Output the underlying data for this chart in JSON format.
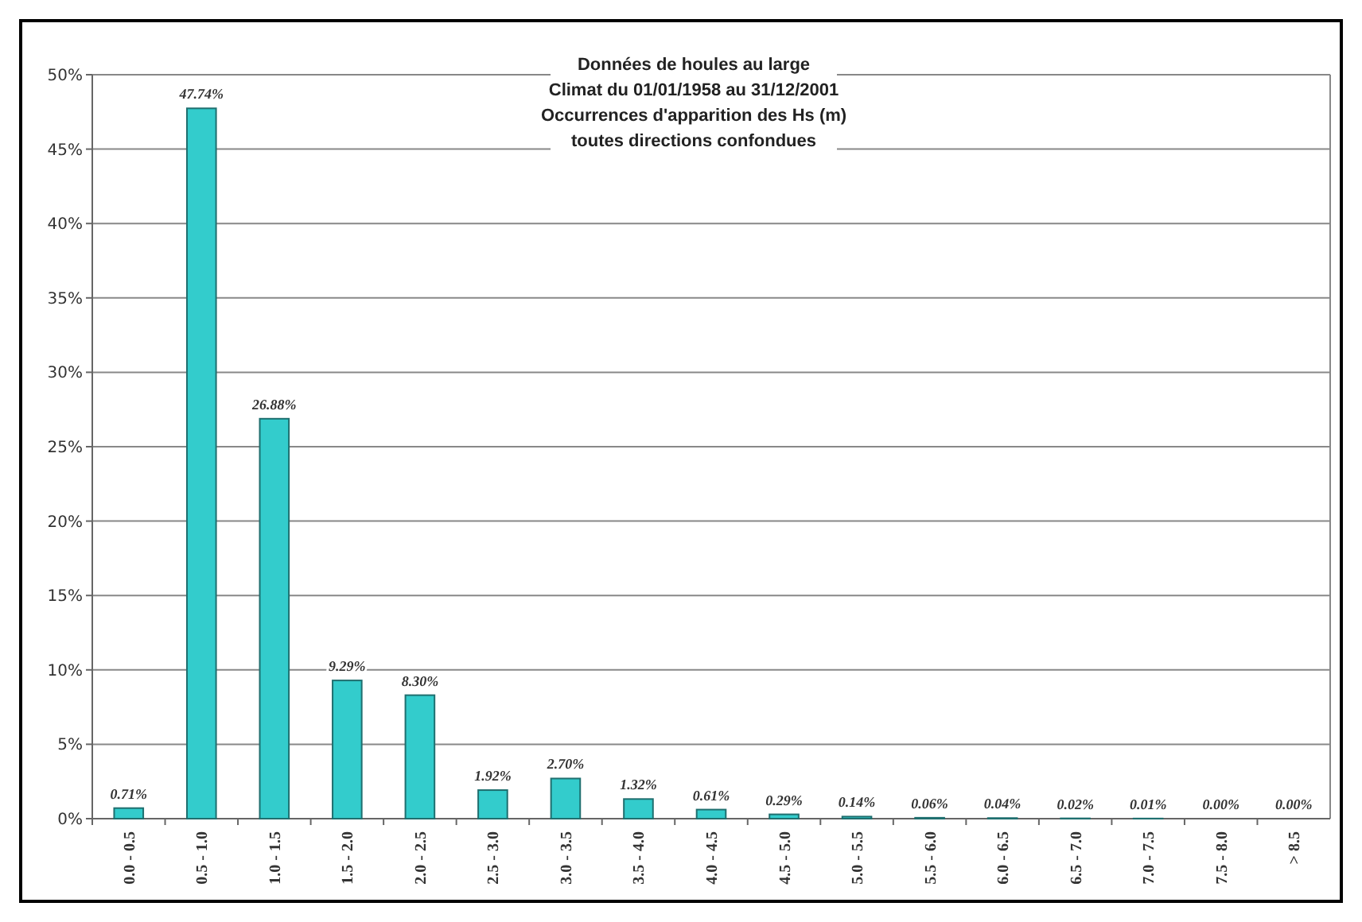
{
  "chart_data": {
    "type": "bar",
    "title": "Données de houles au large",
    "subtitle": "Climat du 01/01/1958 au 31/12/2001\nOccurrences d'apparition des Hs (m)\ntoutes directions confondues",
    "categories": [
      "0.0 - 0.5",
      "0.5 - 1.0",
      "1.0 - 1.5",
      "1.5 - 2.0",
      "2.0 - 2.5",
      "2.5 - 3.0",
      "3.0 - 3.5",
      "3.5 - 4.0",
      "4.0 - 4.5",
      "4.5 - 5.0",
      "5.0 - 5.5",
      "5.5 - 6.0",
      "6.0 - 6.5",
      "6.5 - 7.0",
      "7.0 - 7.5",
      "7.5 - 8.0",
      "> 8.5"
    ],
    "values": [
      0.71,
      47.74,
      26.88,
      9.29,
      8.3,
      1.92,
      2.7,
      1.32,
      0.61,
      0.29,
      0.14,
      0.06,
      0.04,
      0.02,
      0.01,
      0.0,
      0.0
    ],
    "value_labels": [
      "0.71%",
      "47.74%",
      "26.88%",
      "9.29%",
      "8.30%",
      "1.92%",
      "2.70%",
      "1.32%",
      "0.61%",
      "0.29%",
      "0.14%",
      "0.06%",
      "0.04%",
      "0.02%",
      "0.01%",
      "0.00%",
      "0.00%"
    ],
    "color": "#33cccc",
    "ylim": [
      0,
      50
    ],
    "yticks": [
      {
        "value": 0,
        "label": "0%"
      },
      {
        "value": 5,
        "label": "5%"
      },
      {
        "value": 10,
        "label": "10%"
      },
      {
        "value": 15,
        "label": "15%"
      },
      {
        "value": 20,
        "label": "20%"
      },
      {
        "value": 25,
        "label": "25%"
      },
      {
        "value": 30,
        "label": "30%"
      },
      {
        "value": 35,
        "label": "35%"
      },
      {
        "value": 40,
        "label": "40%"
      },
      {
        "value": 45,
        "label": "45%"
      },
      {
        "value": 50,
        "label": "50%"
      }
    ],
    "grid": "y"
  }
}
